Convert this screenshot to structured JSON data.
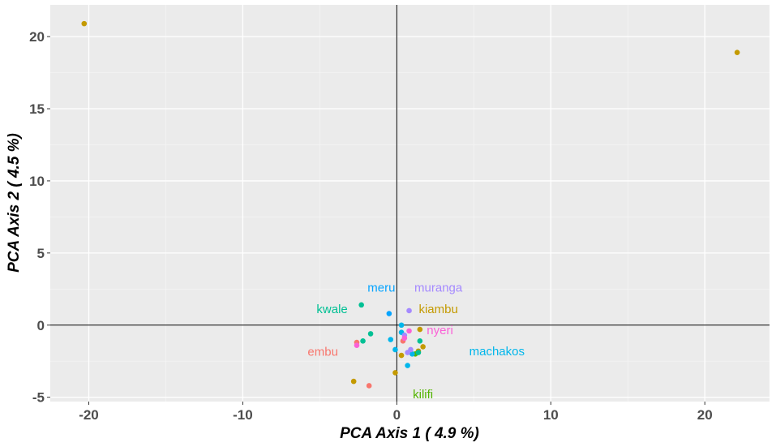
{
  "chart_data": {
    "type": "scatter",
    "title": "",
    "xlabel": "PCA Axis 1 ( 4.9 %)",
    "ylabel": "PCA Axis 2 ( 4.5 %)",
    "xlim": [
      -22.5,
      24.2
    ],
    "ylim": [
      -5.3,
      22.2
    ],
    "xticks": [
      -20,
      -10,
      0,
      10,
      20
    ],
    "xtick_labels": [
      "-20",
      "-10",
      "0",
      "10",
      "20"
    ],
    "yticks": [
      -5,
      0,
      5,
      10,
      15,
      20
    ],
    "ytick_labels": [
      "-5",
      "0",
      "5",
      "10",
      "15",
      "20"
    ],
    "grid": true,
    "legend": "none",
    "reference_lines": {
      "x": 0,
      "y": 0
    },
    "groups": [
      {
        "label": "embu",
        "color": "#F8766D",
        "label_x": -4.8,
        "label_y": -1.85,
        "points": [
          [
            -2.6,
            -1.2
          ],
          [
            -1.8,
            -4.2
          ],
          [
            0.4,
            -1.1
          ]
        ]
      },
      {
        "label": "kiambu",
        "color": "#C49A00",
        "label_x": 2.7,
        "label_y": 1.1,
        "points": [
          [
            -20.3,
            20.9
          ],
          [
            22.1,
            18.9
          ],
          [
            -2.8,
            -3.9
          ],
          [
            -0.1,
            -3.3
          ],
          [
            0.3,
            -2.1
          ],
          [
            1.5,
            -0.3
          ],
          [
            1.7,
            -1.5
          ],
          [
            1.4,
            -1.8
          ]
        ]
      },
      {
        "label": "kilifi",
        "color": "#53B400",
        "label_x": 1.7,
        "label_y": -4.8,
        "points": [
          [
            1.2,
            -2.0
          ]
        ]
      },
      {
        "label": "kwale",
        "color": "#00C094",
        "label_x": -4.2,
        "label_y": 1.1,
        "points": [
          [
            -2.3,
            1.4
          ],
          [
            -1.7,
            -0.6
          ],
          [
            -2.2,
            -1.1
          ],
          [
            1.5,
            -1.1
          ],
          [
            1.4,
            -1.9
          ]
        ]
      },
      {
        "label": "machakos",
        "color": "#00B6EB",
        "label_x": 6.5,
        "label_y": -1.8,
        "points": [
          [
            0.3,
            0.0
          ],
          [
            0.3,
            -0.5
          ],
          [
            -0.4,
            -1.0
          ],
          [
            -0.1,
            -1.7
          ],
          [
            0.7,
            -2.8
          ],
          [
            1.0,
            -2.0
          ]
        ]
      },
      {
        "label": "meru",
        "color": "#06A4FF",
        "label_x": -1.0,
        "label_y": 2.6,
        "points": [
          [
            -0.5,
            0.8
          ]
        ]
      },
      {
        "label": "muranga",
        "color": "#A58AFF",
        "label_x": 2.7,
        "label_y": 2.6,
        "points": [
          [
            0.8,
            1.0
          ],
          [
            0.5,
            -0.7
          ],
          [
            0.9,
            -1.7
          ],
          [
            0.7,
            -1.9
          ]
        ]
      },
      {
        "label": "nyeri",
        "color": "#FB61D7",
        "label_x": 2.8,
        "label_y": -0.35,
        "points": [
          [
            -2.6,
            -1.4
          ],
          [
            0.8,
            -0.4
          ],
          [
            0.5,
            -0.9
          ]
        ]
      }
    ]
  }
}
